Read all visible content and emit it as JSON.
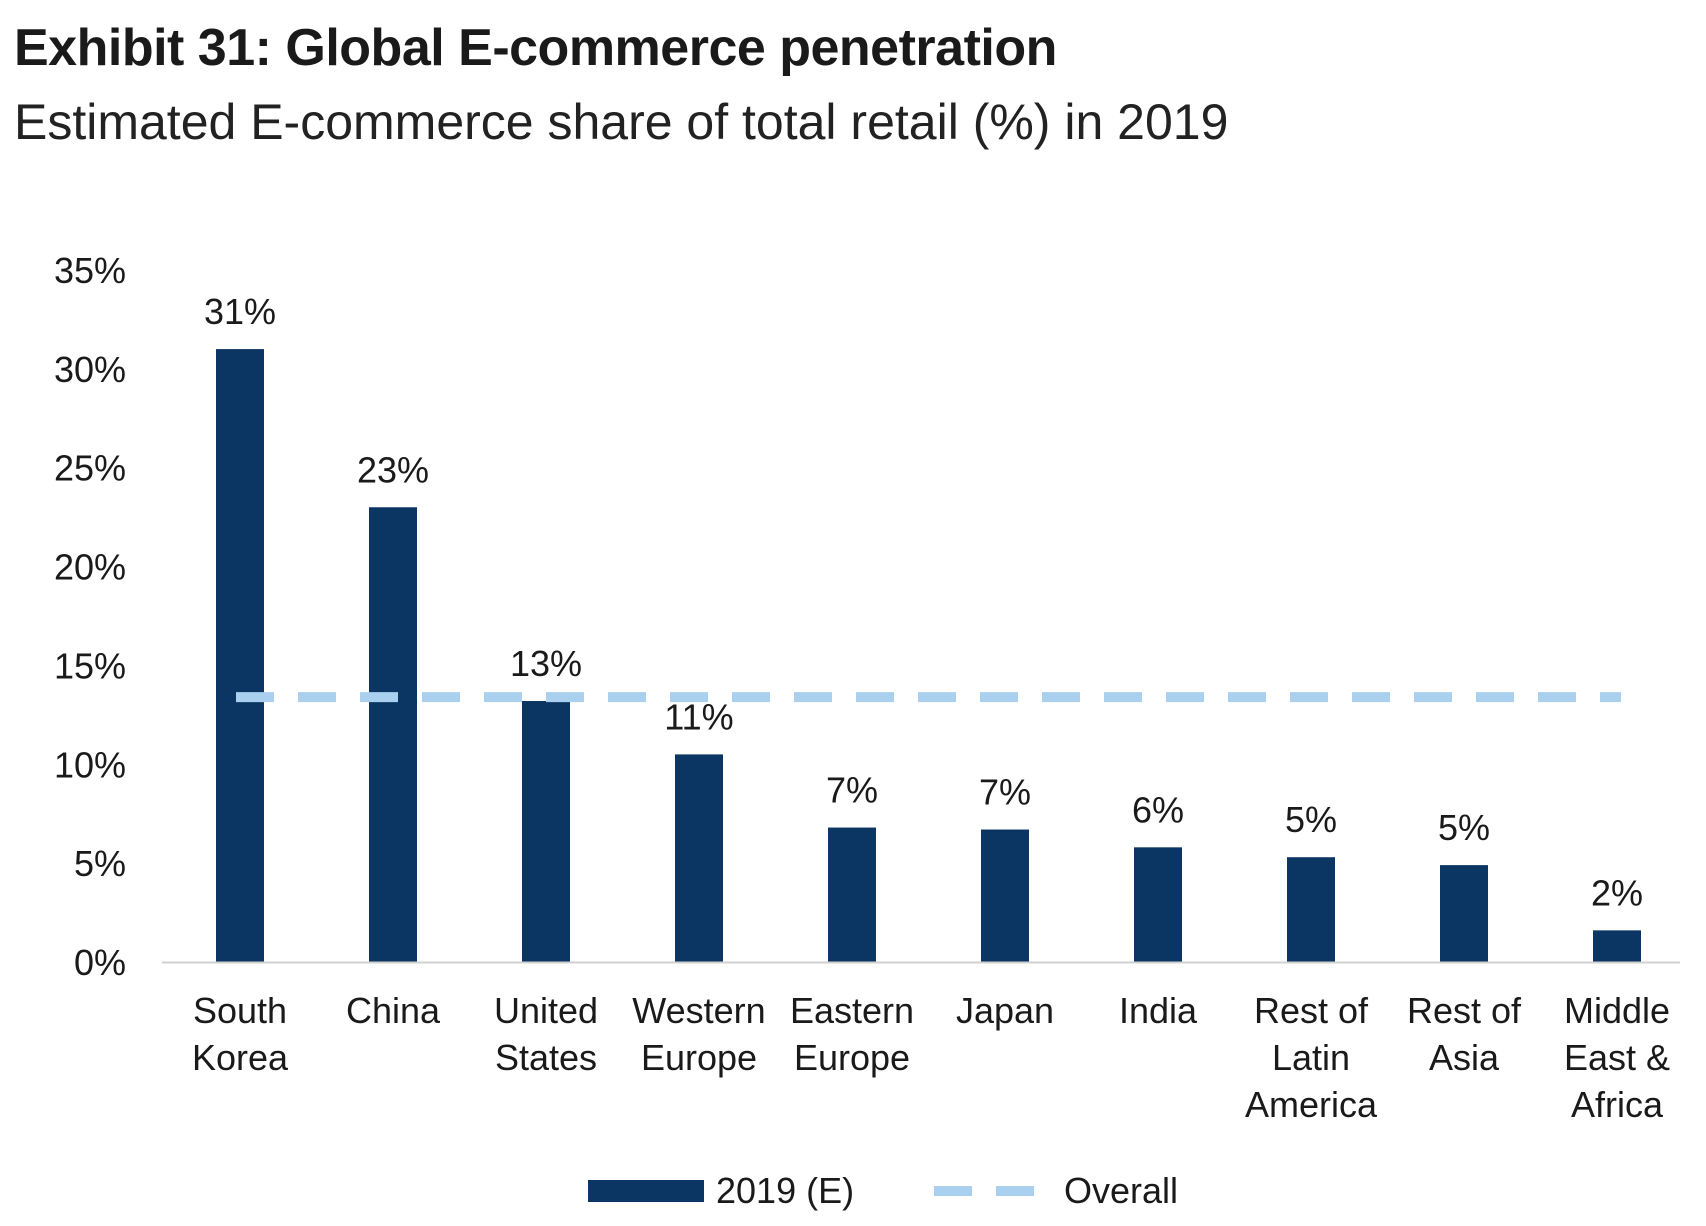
{
  "title": "Exhibit 31: Global E-commerce penetration",
  "subtitle": "Estimated E-commerce share of total retail (%) in 2019",
  "colors": {
    "bar": "#0b3663",
    "overall": "#a9d1ef",
    "axis": "#d0d0d0"
  },
  "chart_data": {
    "type": "bar",
    "categories": [
      [
        "South",
        "Korea"
      ],
      [
        "China"
      ],
      [
        "United",
        "States"
      ],
      [
        "Western",
        "Europe"
      ],
      [
        "Eastern",
        "Europe"
      ],
      [
        "Japan"
      ],
      [
        "India"
      ],
      [
        "Rest of",
        "Latin",
        "America"
      ],
      [
        "Rest of",
        "Asia"
      ],
      [
        "Middle",
        "East &",
        "Africa"
      ]
    ],
    "series": [
      {
        "name": "2019 (E)",
        "values": [
          31,
          23,
          13.2,
          10.5,
          6.8,
          6.7,
          5.8,
          5.3,
          4.9,
          1.6
        ],
        "data_labels": [
          "31%",
          "23%",
          "13%",
          "11%",
          "7%",
          "7%",
          "6%",
          "5%",
          "5%",
          "2%"
        ]
      },
      {
        "name": "Overall",
        "type": "line",
        "style": "dashed",
        "value": 13.4
      }
    ],
    "y_ticks": [
      "0%",
      "5%",
      "10%",
      "15%",
      "20%",
      "25%",
      "30%",
      "35%"
    ],
    "ylim": [
      0,
      35
    ],
    "xlabel": "",
    "ylabel": "",
    "grid": false,
    "legend_position": "bottom"
  }
}
